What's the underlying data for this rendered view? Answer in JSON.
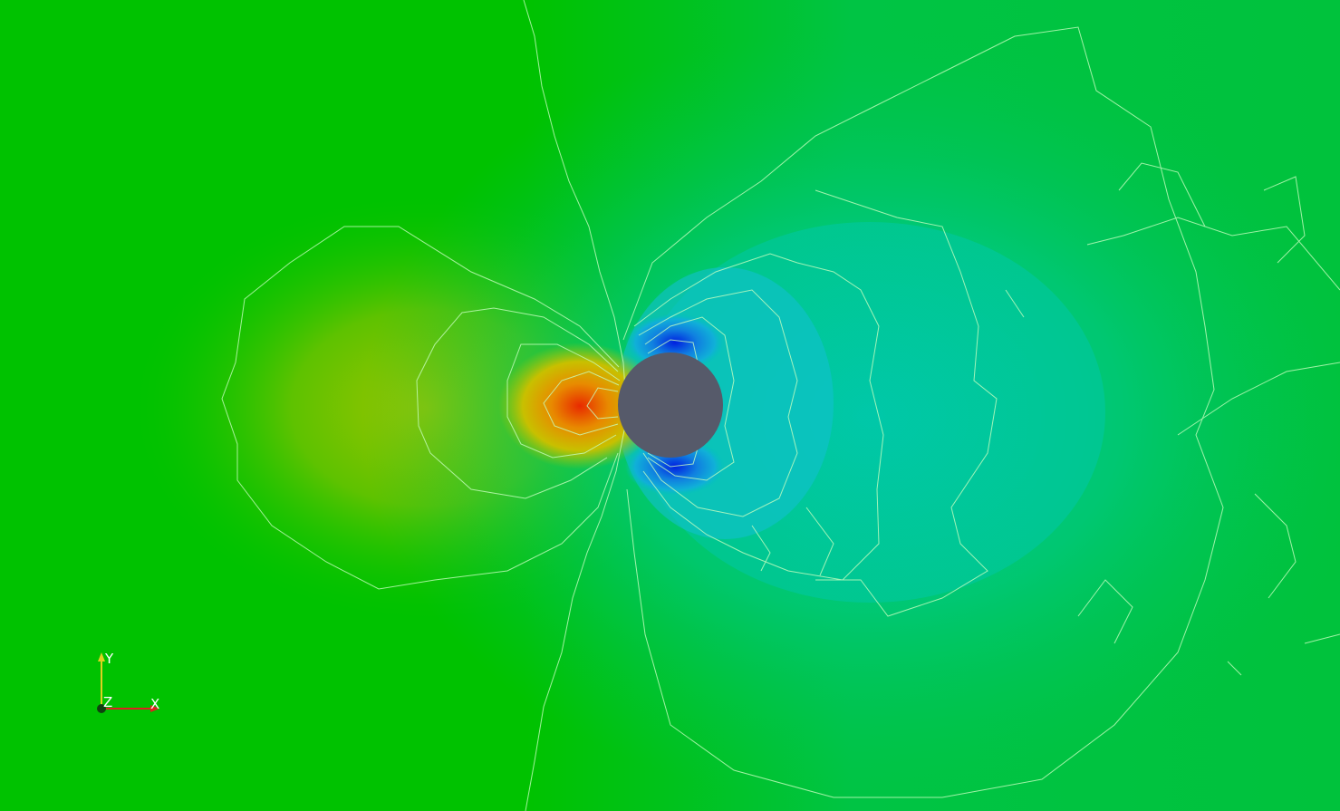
{
  "orientation_axes": {
    "x_label": "X",
    "y_label": "Y",
    "z_label": "Z",
    "x_color": "#e02020",
    "y_color": "#e0d020",
    "z_color": "#104010"
  },
  "colors": {
    "background": "#00c200",
    "obstacle": "#565a6a",
    "contour_line": "#d8ffd0",
    "high_pressure": "#e83a00",
    "low_pressure": "#1030e0"
  },
  "icons": {
    "orientation_widget": "axes-triad-icon",
    "obstacle": "cylinder-obstacle"
  }
}
